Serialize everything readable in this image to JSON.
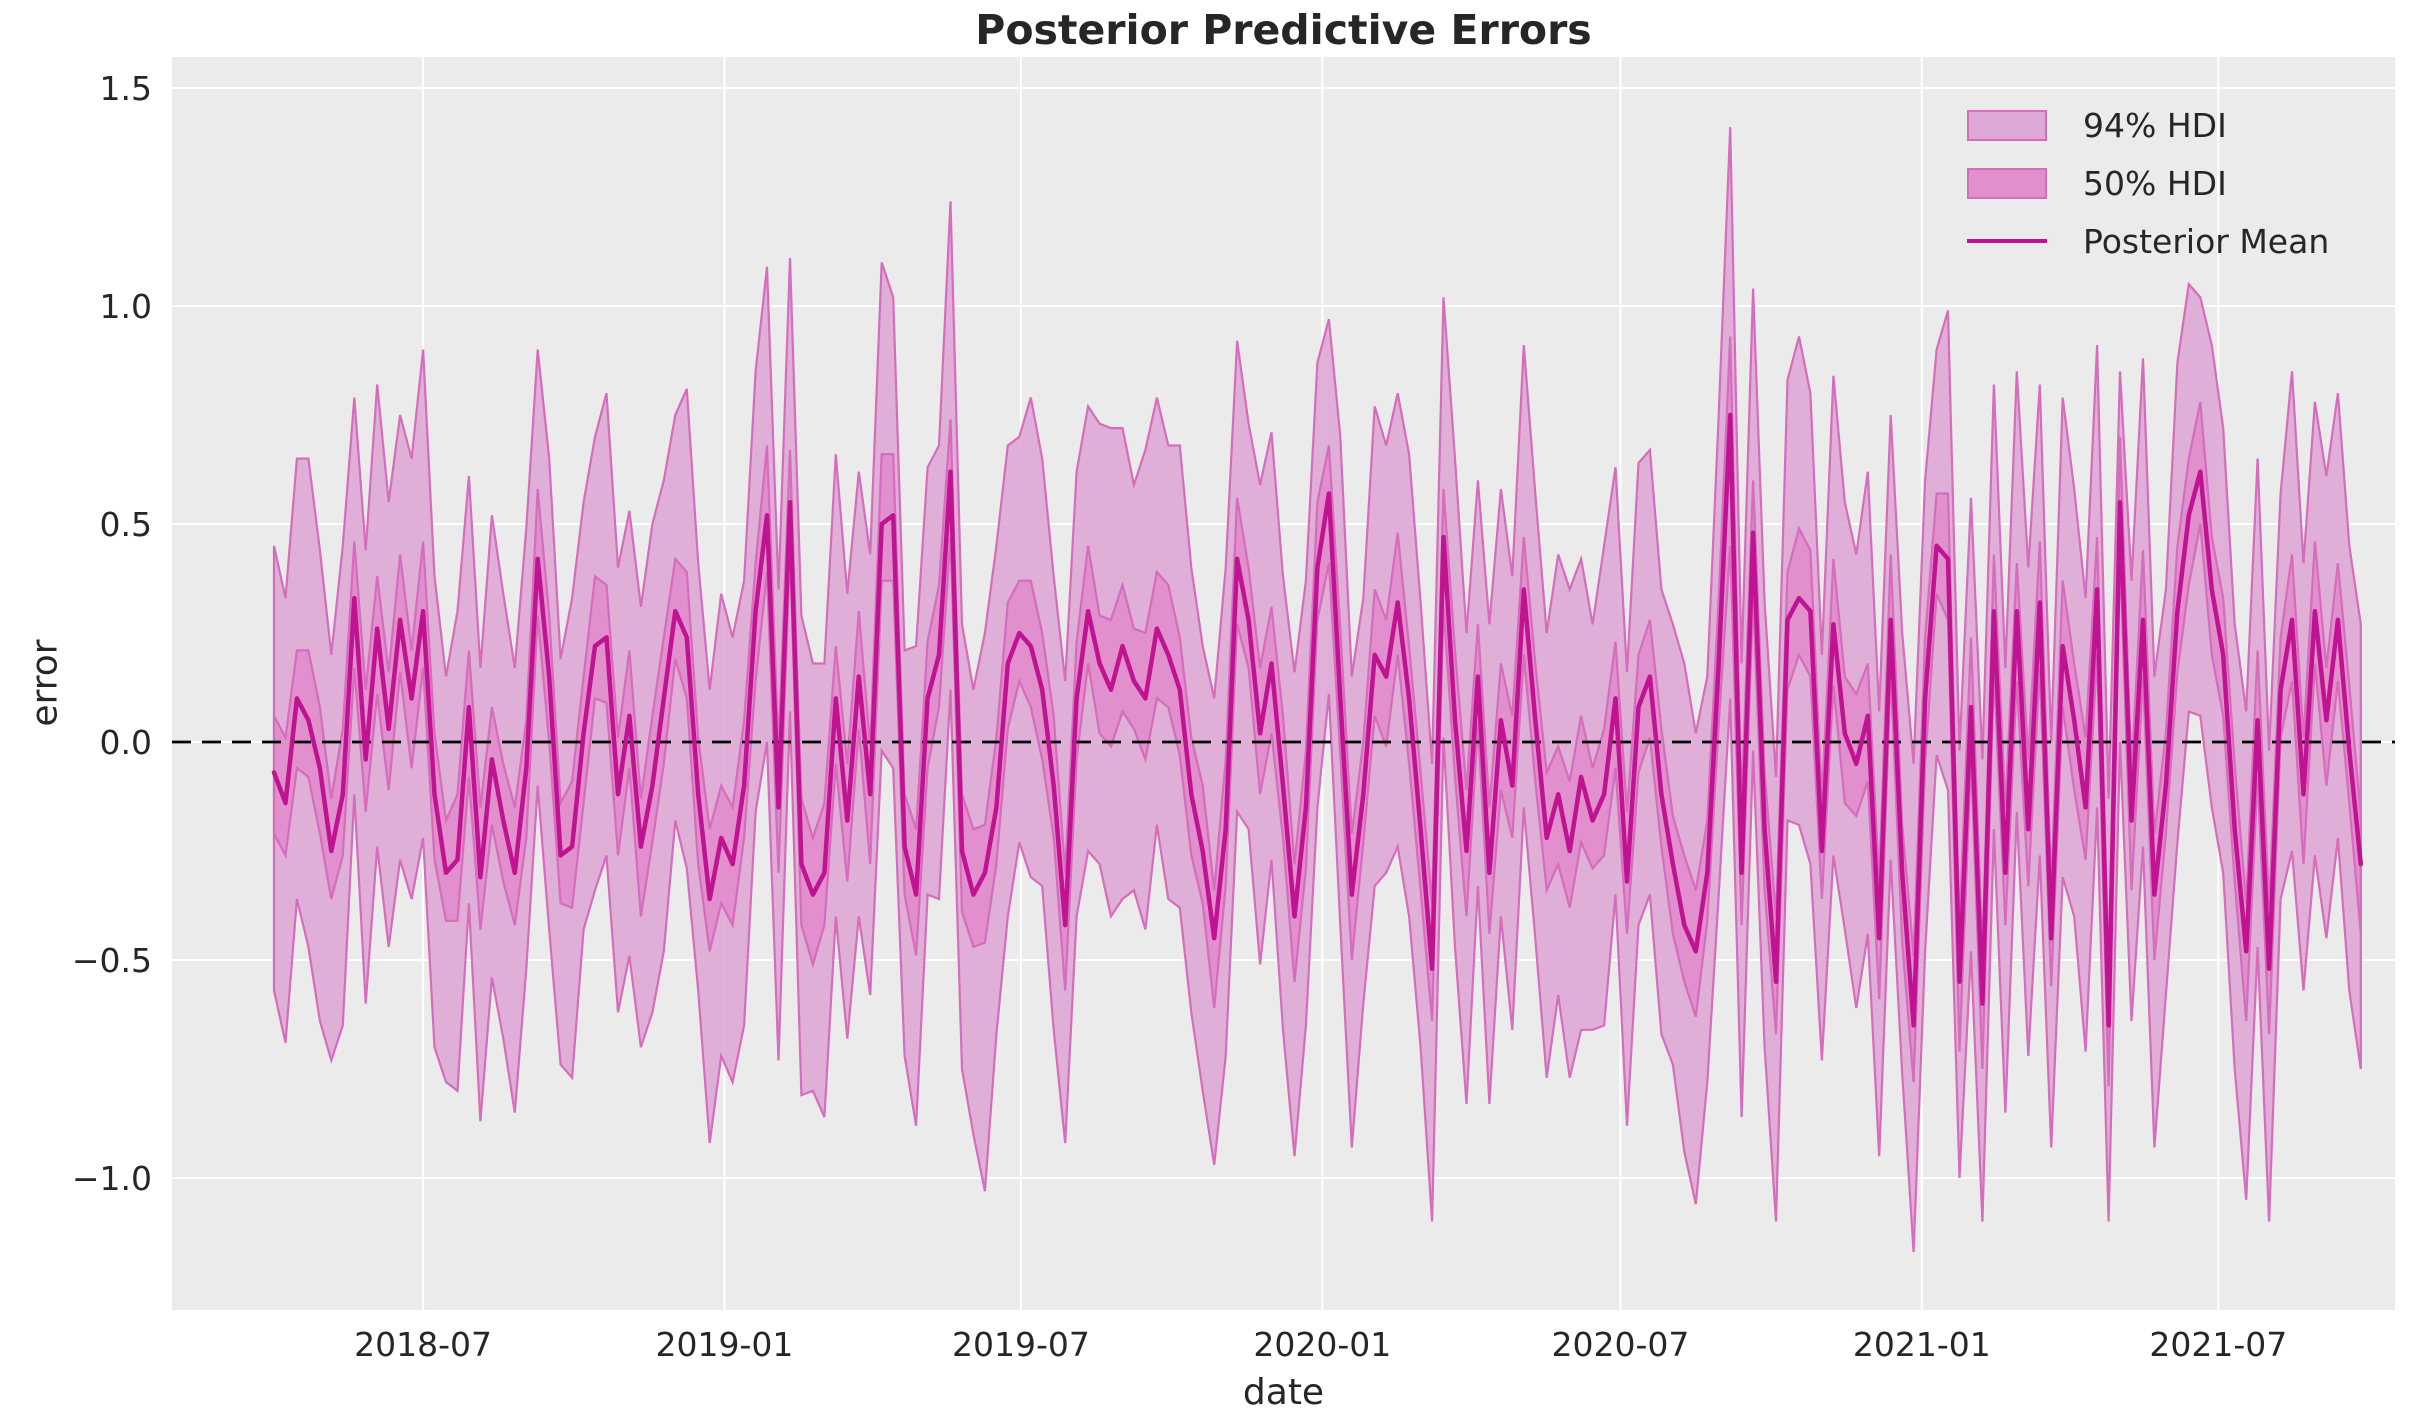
{
  "chart_data": {
    "type": "line",
    "title": "Posterior Predictive Errors",
    "xlabel": "date",
    "ylabel": "error",
    "x_tick_labels": [
      "2018-07",
      "2019-01",
      "2019-07",
      "2020-01",
      "2020-07",
      "2021-01",
      "2021-07"
    ],
    "y_ticks": [
      1.5,
      1.0,
      0.5,
      0.0,
      -0.5,
      -1.0
    ],
    "y_tick_labels": [
      "1.5",
      "1.0",
      "0.5",
      "0.0",
      "−0.5",
      "−1.0"
    ],
    "ylim": [
      -1.3,
      1.57
    ],
    "x_start_date": "2018-04-01",
    "x_step_days": 7,
    "n_points": 183,
    "zero_line_y": 0.0,
    "grid": true,
    "legend_position": "upper right",
    "legend": [
      {
        "label": "94% HDI",
        "type": "patch"
      },
      {
        "label": "50% HDI",
        "type": "patch"
      },
      {
        "label": "Posterior Mean",
        "type": "line"
      }
    ],
    "colors": {
      "hdi94_fill": "#dfa9d6",
      "hdi50_fill": "#e18fcd",
      "band_edge": "#d56cbc",
      "mean_line": "#c01392",
      "plot_bg": "#ebebeb",
      "grid": "#ffffff",
      "zero_line": "#000000",
      "text": "#262626"
    },
    "series": {
      "mean": [
        -0.07,
        -0.14,
        0.1,
        0.05,
        -0.06,
        -0.25,
        -0.12,
        0.33,
        -0.04,
        0.26,
        0.03,
        0.28,
        0.1,
        0.3,
        -0.12,
        -0.3,
        -0.27,
        0.08,
        -0.31,
        -0.04,
        -0.18,
        -0.3,
        -0.06,
        0.42,
        0.15,
        -0.26,
        -0.24,
        0.02,
        0.22,
        0.24,
        -0.12,
        0.06,
        -0.24,
        -0.1,
        0.1,
        0.3,
        0.24,
        -0.12,
        -0.36,
        -0.22,
        -0.28,
        -0.1,
        0.3,
        0.52,
        -0.15,
        0.55,
        -0.28,
        -0.35,
        -0.3,
        0.1,
        -0.18,
        0.15,
        -0.12,
        0.5,
        0.52,
        -0.24,
        -0.35,
        0.1,
        0.2,
        0.62,
        -0.25,
        -0.35,
        -0.3,
        -0.15,
        0.18,
        0.25,
        0.22,
        0.12,
        -0.1,
        -0.42,
        0.1,
        0.3,
        0.18,
        0.12,
        0.22,
        0.14,
        0.1,
        0.26,
        0.2,
        0.12,
        -0.12,
        -0.25,
        -0.45,
        -0.2,
        0.42,
        0.28,
        0.02,
        0.18,
        -0.1,
        -0.4,
        -0.15,
        0.4,
        0.57,
        0.1,
        -0.35,
        -0.12,
        0.2,
        0.15,
        0.32,
        0.1,
        -0.2,
        -0.52,
        0.47,
        0.05,
        -0.25,
        0.15,
        -0.3,
        0.05,
        -0.1,
        0.35,
        0.05,
        -0.22,
        -0.12,
        -0.25,
        -0.08,
        -0.18,
        -0.12,
        0.1,
        -0.32,
        0.08,
        0.15,
        -0.12,
        -0.28,
        -0.42,
        -0.48,
        -0.3,
        0.18,
        0.75,
        -0.3,
        0.48,
        -0.2,
        -0.55,
        0.28,
        0.33,
        0.3,
        -0.25,
        0.27,
        0.02,
        -0.05,
        0.06,
        -0.45,
        0.28,
        -0.3,
        -0.65,
        0.1,
        0.45,
        0.42,
        -0.55,
        0.08,
        -0.6,
        0.3,
        -0.3,
        0.3,
        -0.2,
        0.32,
        -0.45,
        0.22,
        0.05,
        -0.15,
        0.35,
        -0.65,
        0.55,
        -0.18,
        0.28,
        -0.35,
        -0.1,
        0.3,
        0.52,
        0.62,
        0.35,
        0.2,
        -0.2,
        -0.48,
        0.05,
        -0.52,
        0.12,
        0.28,
        -0.12,
        0.3,
        0.05,
        0.28,
        -0.02,
        -0.28
      ],
      "hdi94_plus": [
        0.52,
        0.47,
        0.55,
        0.6,
        0.5,
        0.45,
        0.57,
        0.46,
        0.48,
        0.56,
        0.52,
        0.47,
        0.55,
        0.6,
        0.5,
        0.45,
        0.57,
        0.53,
        0.48,
        0.56,
        0.52,
        0.47,
        0.55,
        0.48,
        0.5,
        0.45,
        0.57,
        0.53,
        0.48,
        0.56,
        0.52,
        0.47,
        0.55,
        0.6,
        0.5,
        0.45,
        0.57,
        0.53,
        0.48,
        0.56,
        0.52,
        0.47,
        0.55,
        0.57,
        0.5,
        0.56,
        0.57,
        0.53,
        0.48,
        0.56,
        0.52,
        0.47,
        0.55,
        0.6,
        0.5,
        0.45,
        0.57,
        0.53,
        0.48,
        0.62,
        0.52,
        0.47,
        0.55,
        0.6,
        0.5,
        0.45,
        0.57,
        0.53,
        0.48,
        0.56,
        0.52,
        0.47,
        0.55,
        0.6,
        0.5,
        0.45,
        0.57,
        0.53,
        0.48,
        0.56,
        0.52,
        0.47,
        0.55,
        0.6,
        0.5,
        0.45,
        0.57,
        0.53,
        0.48,
        0.56,
        0.52,
        0.47,
        0.4,
        0.6,
        0.5,
        0.45,
        0.57,
        0.53,
        0.48,
        0.56,
        0.52,
        0.47,
        0.55,
        0.6,
        0.5,
        0.45,
        0.57,
        0.53,
        0.48,
        0.56,
        0.52,
        0.47,
        0.55,
        0.6,
        0.5,
        0.45,
        0.57,
        0.53,
        0.48,
        0.56,
        0.52,
        0.47,
        0.55,
        0.6,
        0.5,
        0.45,
        0.57,
        0.66,
        0.48,
        0.56,
        0.52,
        0.47,
        0.55,
        0.6,
        0.5,
        0.45,
        0.57,
        0.53,
        0.48,
        0.56,
        0.52,
        0.47,
        0.55,
        0.6,
        0.5,
        0.45,
        0.57,
        0.53,
        0.48,
        0.56,
        0.52,
        0.47,
        0.55,
        0.6,
        0.5,
        0.45,
        0.57,
        0.53,
        0.48,
        0.56,
        0.52,
        0.3,
        0.55,
        0.6,
        0.5,
        0.45,
        0.57,
        0.53,
        0.4,
        0.56,
        0.52,
        0.47,
        0.55,
        0.6,
        0.5,
        0.45,
        0.57,
        0.53,
        0.48,
        0.56,
        0.52,
        0.47,
        0.55
      ],
      "hdi94_minus": [
        0.5,
        0.55,
        0.46,
        0.52,
        0.58,
        0.48,
        0.53,
        0.45,
        0.56,
        0.5,
        0.5,
        0.55,
        0.46,
        0.52,
        0.58,
        0.48,
        0.53,
        0.45,
        0.56,
        0.5,
        0.5,
        0.55,
        0.46,
        0.52,
        0.58,
        0.48,
        0.53,
        0.45,
        0.56,
        0.5,
        0.5,
        0.55,
        0.46,
        0.52,
        0.58,
        0.48,
        0.53,
        0.45,
        0.56,
        0.5,
        0.5,
        0.55,
        0.46,
        0.52,
        0.58,
        0.48,
        0.53,
        0.45,
        0.56,
        0.5,
        0.5,
        0.55,
        0.46,
        0.52,
        0.58,
        0.48,
        0.53,
        0.45,
        0.56,
        0.5,
        0.5,
        0.55,
        0.73,
        0.52,
        0.58,
        0.48,
        0.53,
        0.45,
        0.56,
        0.5,
        0.5,
        0.55,
        0.46,
        0.52,
        0.58,
        0.48,
        0.53,
        0.45,
        0.56,
        0.5,
        0.5,
        0.55,
        0.52,
        0.52,
        0.58,
        0.48,
        0.53,
        0.45,
        0.56,
        0.55,
        0.5,
        0.55,
        0.46,
        0.52,
        0.58,
        0.48,
        0.53,
        0.45,
        0.56,
        0.5,
        0.5,
        0.58,
        0.46,
        0.52,
        0.58,
        0.48,
        0.53,
        0.45,
        0.56,
        0.5,
        0.5,
        0.55,
        0.46,
        0.52,
        0.58,
        0.48,
        0.53,
        0.45,
        0.56,
        0.5,
        0.5,
        0.55,
        0.46,
        0.52,
        0.58,
        0.48,
        0.53,
        0.65,
        0.56,
        0.5,
        0.5,
        0.55,
        0.46,
        0.52,
        0.58,
        0.48,
        0.53,
        0.45,
        0.56,
        0.5,
        0.5,
        0.55,
        0.46,
        0.52,
        0.58,
        0.48,
        0.53,
        0.45,
        0.56,
        0.5,
        0.5,
        0.55,
        0.46,
        0.52,
        0.58,
        0.48,
        0.53,
        0.45,
        0.56,
        0.5,
        0.45,
        0.55,
        0.46,
        0.52,
        0.58,
        0.48,
        0.53,
        0.45,
        0.56,
        0.5,
        0.5,
        0.55,
        0.57,
        0.52,
        0.58,
        0.48,
        0.53,
        0.45,
        0.56,
        0.5,
        0.5,
        0.55,
        0.47
      ],
      "hdi50_plus": [
        0.13,
        0.15,
        0.11,
        0.16,
        0.14,
        0.12,
        0.15,
        0.13,
        0.16,
        0.12,
        0.13,
        0.15,
        0.11,
        0.16,
        0.14,
        0.12,
        0.15,
        0.13,
        0.16,
        0.12,
        0.13,
        0.15,
        0.11,
        0.16,
        0.14,
        0.12,
        0.15,
        0.13,
        0.16,
        0.12,
        0.13,
        0.15,
        0.11,
        0.16,
        0.14,
        0.12,
        0.15,
        0.13,
        0.16,
        0.12,
        0.13,
        0.15,
        0.11,
        0.16,
        0.14,
        0.12,
        0.15,
        0.13,
        0.16,
        0.12,
        0.13,
        0.15,
        0.11,
        0.16,
        0.14,
        0.12,
        0.15,
        0.13,
        0.16,
        0.12,
        0.13,
        0.15,
        0.11,
        0.16,
        0.14,
        0.12,
        0.15,
        0.13,
        0.16,
        0.12,
        0.13,
        0.15,
        0.11,
        0.16,
        0.14,
        0.12,
        0.15,
        0.13,
        0.16,
        0.12,
        0.13,
        0.15,
        0.11,
        0.16,
        0.14,
        0.12,
        0.15,
        0.13,
        0.16,
        0.12,
        0.13,
        0.15,
        0.11,
        0.16,
        0.14,
        0.12,
        0.15,
        0.13,
        0.16,
        0.12,
        0.13,
        0.15,
        0.11,
        0.16,
        0.14,
        0.12,
        0.15,
        0.13,
        0.16,
        0.12,
        0.13,
        0.15,
        0.11,
        0.16,
        0.14,
        0.12,
        0.15,
        0.13,
        0.16,
        0.12,
        0.13,
        0.15,
        0.11,
        0.16,
        0.14,
        0.12,
        0.15,
        0.18,
        0.16,
        0.12,
        0.13,
        0.15,
        0.11,
        0.16,
        0.14,
        0.12,
        0.15,
        0.13,
        0.16,
        0.12,
        0.13,
        0.15,
        0.11,
        0.16,
        0.14,
        0.12,
        0.15,
        0.13,
        0.16,
        0.12,
        0.13,
        0.15,
        0.11,
        0.16,
        0.14,
        0.12,
        0.15,
        0.13,
        0.16,
        0.12,
        0.13,
        0.15,
        0.11,
        0.16,
        0.14,
        0.12,
        0.15,
        0.13,
        0.16,
        0.12,
        0.13,
        0.15,
        0.11,
        0.16,
        0.14,
        0.12,
        0.15,
        0.13,
        0.16,
        0.12,
        0.13,
        0.15,
        0.11
      ],
      "hdi50_minus": [
        0.14,
        0.12,
        0.16,
        0.13,
        0.15,
        0.11,
        0.14,
        0.16,
        0.12,
        0.15,
        0.14,
        0.12,
        0.16,
        0.13,
        0.15,
        0.11,
        0.14,
        0.16,
        0.12,
        0.15,
        0.14,
        0.12,
        0.16,
        0.13,
        0.15,
        0.11,
        0.14,
        0.16,
        0.12,
        0.15,
        0.14,
        0.12,
        0.16,
        0.13,
        0.15,
        0.11,
        0.14,
        0.16,
        0.12,
        0.15,
        0.14,
        0.12,
        0.16,
        0.13,
        0.15,
        0.11,
        0.14,
        0.16,
        0.12,
        0.15,
        0.14,
        0.12,
        0.16,
        0.13,
        0.15,
        0.11,
        0.14,
        0.16,
        0.12,
        0.15,
        0.14,
        0.12,
        0.16,
        0.13,
        0.15,
        0.11,
        0.14,
        0.16,
        0.12,
        0.15,
        0.14,
        0.12,
        0.16,
        0.13,
        0.15,
        0.11,
        0.14,
        0.16,
        0.12,
        0.15,
        0.14,
        0.12,
        0.16,
        0.13,
        0.15,
        0.11,
        0.14,
        0.16,
        0.12,
        0.15,
        0.14,
        0.12,
        0.16,
        0.13,
        0.15,
        0.11,
        0.14,
        0.16,
        0.12,
        0.15,
        0.14,
        0.12,
        0.16,
        0.13,
        0.15,
        0.11,
        0.14,
        0.16,
        0.12,
        0.15,
        0.14,
        0.12,
        0.16,
        0.13,
        0.15,
        0.11,
        0.14,
        0.16,
        0.12,
        0.15,
        0.14,
        0.12,
        0.16,
        0.13,
        0.15,
        0.11,
        0.14,
        0.3,
        0.12,
        0.15,
        0.14,
        0.12,
        0.16,
        0.13,
        0.15,
        0.11,
        0.14,
        0.16,
        0.12,
        0.15,
        0.14,
        0.12,
        0.16,
        0.13,
        0.15,
        0.11,
        0.14,
        0.16,
        0.12,
        0.15,
        0.14,
        0.12,
        0.16,
        0.13,
        0.15,
        0.11,
        0.14,
        0.16,
        0.12,
        0.15,
        0.14,
        0.12,
        0.16,
        0.13,
        0.15,
        0.11,
        0.14,
        0.16,
        0.12,
        0.15,
        0.14,
        0.12,
        0.16,
        0.13,
        0.15,
        0.11,
        0.14,
        0.16,
        0.12,
        0.15,
        0.14,
        0.12,
        0.16
      ]
    }
  }
}
